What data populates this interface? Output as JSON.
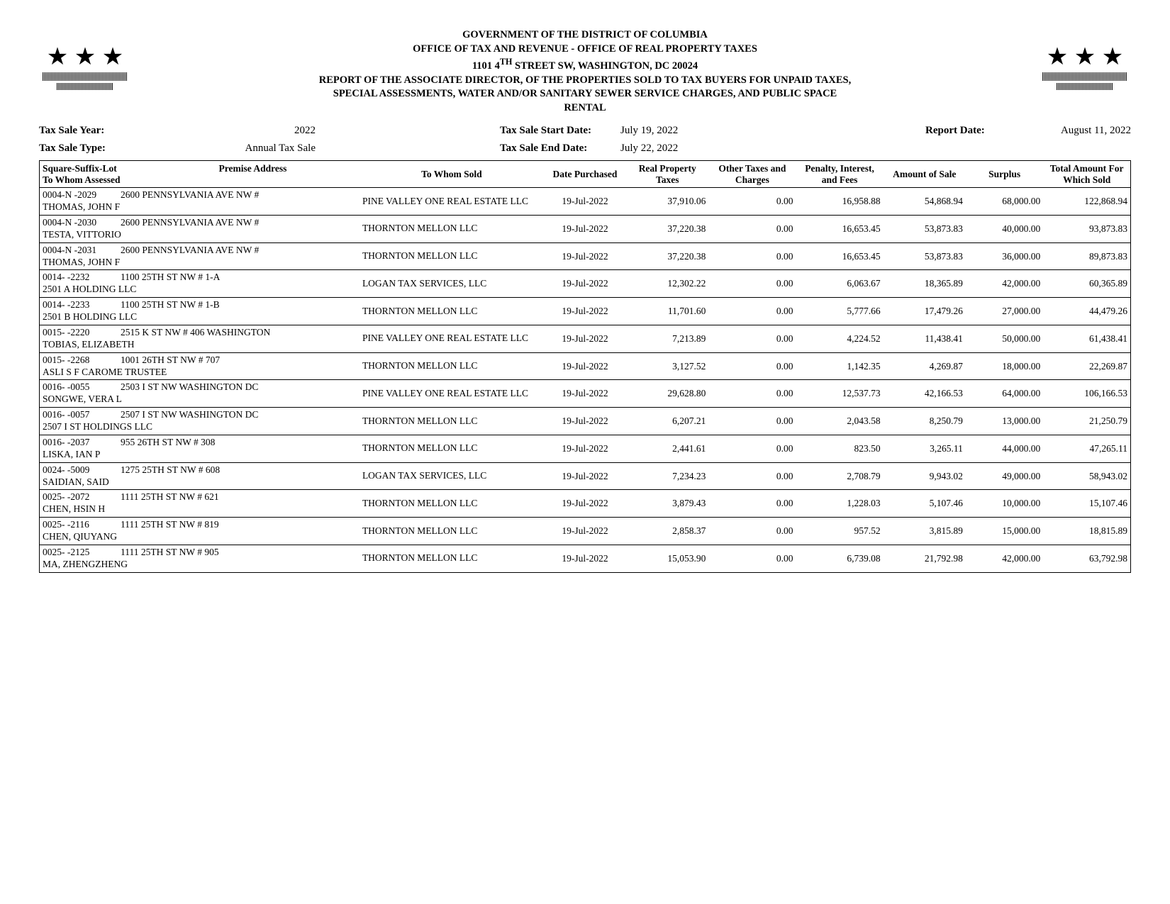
{
  "header": {
    "line1": "GOVERNMENT OF THE DISTRICT OF COLUMBIA",
    "line2": "OFFICE OF TAX AND REVENUE - OFFICE OF REAL PROPERTY TAXES",
    "line3_pre": "1101 4",
    "line3_sup": "TH",
    "line3_post": " STREET SW, WASHINGTON, DC  20024",
    "line4": "REPORT OF THE ASSOCIATE DIRECTOR, OF THE PROPERTIES SOLD TO TAX BUYERS FOR UNPAID TAXES,",
    "line5": "SPECIAL ASSESSMENTS, WATER AND/OR SANITARY SEWER SERVICE CHARGES, AND PUBLIC SPACE",
    "line6": "RENTAL"
  },
  "meta": {
    "year_label": "Tax Sale Year:",
    "year": "2022",
    "type_label": "Tax Sale Type:",
    "type": "Annual Tax Sale",
    "start_label": "Tax Sale Start Date:",
    "start": "July 19, 2022",
    "end_label": "Tax Sale End Date:",
    "end": "July 22, 2022",
    "report_label": "Report Date:",
    "report": "August 11, 2022"
  },
  "columns": {
    "c1a": "Square-Suffix-Lot",
    "c1b": "Premise Address",
    "c1c": "To Whom Assessed",
    "c2": "To Whom Sold",
    "c3": "Date Purchased",
    "c4": "Real Property Taxes",
    "c5": "Other Taxes and Charges",
    "c6": "Penalty, Interest, and Fees",
    "c7": "Amount of Sale",
    "c8": "Surplus",
    "c9": "Total Amount For Which Sold"
  },
  "rows": [
    {
      "ssl": "0004-N  -2029",
      "addr": "2600 PENNSYLVANIA AVE NW #",
      "assessee": "THOMAS, JOHN F",
      "sold": "PINE VALLEY ONE REAL ESTATE LLC",
      "date": "19-Jul-2022",
      "rpt": "37,910.06",
      "other": "0.00",
      "pif": "16,958.88",
      "amt": "54,868.94",
      "surp": "68,000.00",
      "total": "122,868.94"
    },
    {
      "ssl": "0004-N  -2030",
      "addr": "2600 PENNSYLVANIA AVE NW #",
      "assessee": "TESTA, VITTORIO",
      "sold": "THORNTON MELLON LLC",
      "date": "19-Jul-2022",
      "rpt": "37,220.38",
      "other": "0.00",
      "pif": "16,653.45",
      "amt": "53,873.83",
      "surp": "40,000.00",
      "total": "93,873.83"
    },
    {
      "ssl": "0004-N  -2031",
      "addr": "2600 PENNSYLVANIA AVE NW #",
      "assessee": "THOMAS, JOHN F",
      "sold": "THORNTON MELLON LLC",
      "date": "19-Jul-2022",
      "rpt": "37,220.38",
      "other": "0.00",
      "pif": "16,653.45",
      "amt": "53,873.83",
      "surp": "36,000.00",
      "total": "89,873.83"
    },
    {
      "ssl": "0014-    -2232",
      "addr": "1100 25TH ST NW # 1-A",
      "assessee": "2501 A HOLDING LLC",
      "sold": "LOGAN TAX SERVICES, LLC",
      "date": "19-Jul-2022",
      "rpt": "12,302.22",
      "other": "0.00",
      "pif": "6,063.67",
      "amt": "18,365.89",
      "surp": "42,000.00",
      "total": "60,365.89"
    },
    {
      "ssl": "0014-    -2233",
      "addr": "1100 25TH ST NW # 1-B",
      "assessee": "2501 B HOLDING LLC",
      "sold": "THORNTON MELLON LLC",
      "date": "19-Jul-2022",
      "rpt": "11,701.60",
      "other": "0.00",
      "pif": "5,777.66",
      "amt": "17,479.26",
      "surp": "27,000.00",
      "total": "44,479.26"
    },
    {
      "ssl": "0015-    -2220",
      "addr": "2515 K ST NW # 406 WASHINGTON",
      "assessee": "TOBIAS, ELIZABETH",
      "sold": "PINE VALLEY ONE REAL ESTATE LLC",
      "date": "19-Jul-2022",
      "rpt": "7,213.89",
      "other": "0.00",
      "pif": "4,224.52",
      "amt": "11,438.41",
      "surp": "50,000.00",
      "total": "61,438.41"
    },
    {
      "ssl": "0015-    -2268",
      "addr": "1001 26TH ST NW # 707",
      "assessee": "ASLI S F CAROME TRUSTEE",
      "sold": "THORNTON MELLON LLC",
      "date": "19-Jul-2022",
      "rpt": "3,127.52",
      "other": "0.00",
      "pif": "1,142.35",
      "amt": "4,269.87",
      "surp": "18,000.00",
      "total": "22,269.87"
    },
    {
      "ssl": "0016-    -0055",
      "addr": "2503 I ST NW WASHINGTON DC",
      "assessee": "SONGWE, VERA L",
      "sold": "PINE VALLEY ONE REAL ESTATE LLC",
      "date": "19-Jul-2022",
      "rpt": "29,628.80",
      "other": "0.00",
      "pif": "12,537.73",
      "amt": "42,166.53",
      "surp": "64,000.00",
      "total": "106,166.53"
    },
    {
      "ssl": "0016-    -0057",
      "addr": "2507 I ST NW WASHINGTON DC",
      "assessee": "2507 I ST HOLDINGS LLC",
      "sold": "THORNTON MELLON LLC",
      "date": "19-Jul-2022",
      "rpt": "6,207.21",
      "other": "0.00",
      "pif": "2,043.58",
      "amt": "8,250.79",
      "surp": "13,000.00",
      "total": "21,250.79"
    },
    {
      "ssl": "0016-    -2037",
      "addr": "955 26TH ST NW # 308",
      "assessee": "LISKA, IAN P",
      "sold": "THORNTON MELLON LLC",
      "date": "19-Jul-2022",
      "rpt": "2,441.61",
      "other": "0.00",
      "pif": "823.50",
      "amt": "3,265.11",
      "surp": "44,000.00",
      "total": "47,265.11"
    },
    {
      "ssl": "0024-    -5009",
      "addr": "1275 25TH ST NW # 608",
      "assessee": "SAIDIAN, SAID",
      "sold": "LOGAN TAX SERVICES, LLC",
      "date": "19-Jul-2022",
      "rpt": "7,234.23",
      "other": "0.00",
      "pif": "2,708.79",
      "amt": "9,943.02",
      "surp": "49,000.00",
      "total": "58,943.02"
    },
    {
      "ssl": "0025-    -2072",
      "addr": "1111 25TH ST NW # 621",
      "assessee": "CHEN, HSIN H",
      "sold": "THORNTON MELLON LLC",
      "date": "19-Jul-2022",
      "rpt": "3,879.43",
      "other": "0.00",
      "pif": "1,228.03",
      "amt": "5,107.46",
      "surp": "10,000.00",
      "total": "15,107.46"
    },
    {
      "ssl": "0025-    -2116",
      "addr": "1111 25TH ST NW # 819",
      "assessee": "CHEN, QIUYANG",
      "sold": "THORNTON MELLON LLC",
      "date": "19-Jul-2022",
      "rpt": "2,858.37",
      "other": "0.00",
      "pif": "957.52",
      "amt": "3,815.89",
      "surp": "15,000.00",
      "total": "18,815.89"
    },
    {
      "ssl": "0025-    -2125",
      "addr": "1111 25TH ST NW # 905",
      "assessee": "MA, ZHENGZHENG",
      "sold": "THORNTON MELLON LLC",
      "date": "19-Jul-2022",
      "rpt": "15,053.90",
      "other": "0.00",
      "pif": "6,739.08",
      "amt": "21,792.98",
      "surp": "42,000.00",
      "total": "63,792.98"
    }
  ]
}
